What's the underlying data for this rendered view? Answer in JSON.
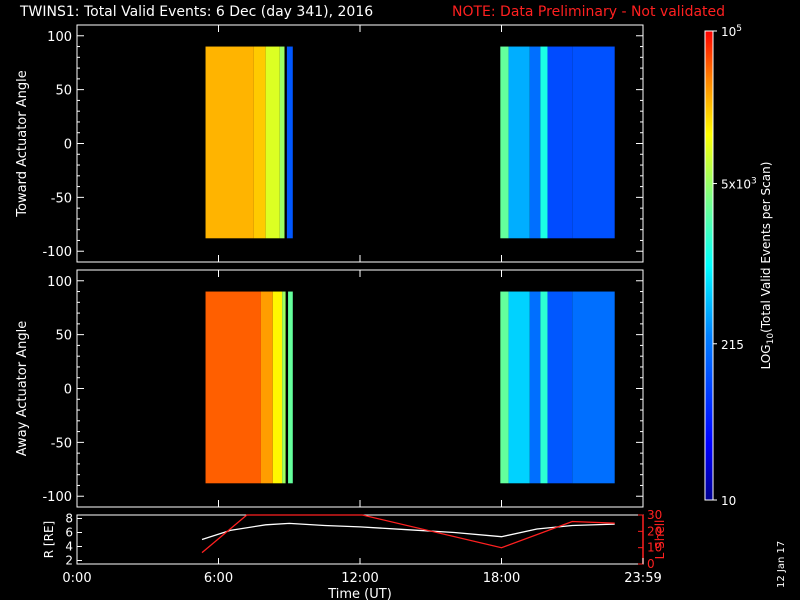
{
  "title": {
    "main": "TWINS1: Total Valid Events:  6 Dec (day 341), 2016",
    "note": "NOTE: Data Preliminary - Not validated"
  },
  "footnote": "12 Jan 17",
  "colors": {
    "background": "#000000",
    "axes": "#ffffff",
    "note": "#ff2020",
    "r_line": "#ffffff",
    "lshell_line": "#ff2020"
  },
  "chart_data": [
    {
      "type": "heatmap",
      "ylabel": "Toward Actuator Angle",
      "ylim": [
        -110,
        110
      ],
      "yticks": [
        100,
        50,
        0,
        -50,
        -100
      ],
      "xlim": [
        0,
        24
      ],
      "y_extent": [
        -88,
        90
      ],
      "blocks": [
        {
          "x": [
            5.45,
            9.2
          ],
          "columns": [
            [
              5.45,
              7.5,
              4.0
            ],
            [
              7.5,
              8.0,
              3.9
            ],
            [
              8.0,
              8.6,
              3.5
            ],
            [
              8.6,
              8.8,
              3.2
            ],
            [
              8.8,
              8.9,
              0.0
            ],
            [
              8.9,
              9.15,
              1.3
            ]
          ]
        },
        {
          "x": [
            17.95,
            22.8
          ],
          "columns": [
            [
              17.95,
              18.3,
              2.9
            ],
            [
              18.3,
              19.2,
              1.9
            ],
            [
              19.2,
              19.65,
              1.5
            ],
            [
              19.65,
              19.95,
              2.5
            ],
            [
              19.95,
              21.0,
              1.2
            ],
            [
              21.0,
              22.8,
              1.25
            ]
          ]
        }
      ]
    },
    {
      "type": "heatmap",
      "ylabel": "Away Actuator Angle",
      "ylim": [
        -110,
        110
      ],
      "yticks": [
        100,
        50,
        0,
        -50,
        -100
      ],
      "xlim": [
        0,
        24
      ],
      "y_extent": [
        -88,
        90
      ],
      "blocks": [
        {
          "x": [
            5.45,
            9.2
          ],
          "columns": [
            [
              5.45,
              7.8,
              4.35
            ],
            [
              7.8,
              8.3,
              4.1
            ],
            [
              8.3,
              8.7,
              3.7
            ],
            [
              8.7,
              8.85,
              3.2
            ],
            [
              8.85,
              8.95,
              0.0
            ],
            [
              8.95,
              9.15,
              2.9
            ]
          ]
        },
        {
          "x": [
            17.95,
            22.8
          ],
          "columns": [
            [
              17.95,
              18.3,
              2.9
            ],
            [
              18.3,
              19.2,
              2.1
            ],
            [
              19.2,
              19.65,
              1.5
            ],
            [
              19.65,
              19.95,
              2.6
            ],
            [
              19.95,
              21.0,
              1.3
            ],
            [
              21.0,
              22.8,
              1.5
            ]
          ]
        }
      ]
    },
    {
      "type": "line",
      "ylabel": "R [RE]",
      "y2label": "L Shell",
      "xlabel": "Time (UT)",
      "xlim": [
        0,
        24
      ],
      "xticks": [
        "0:00",
        "6:00",
        "12:00",
        "18:00",
        "23:59"
      ],
      "ylim": [
        1.5,
        8.5
      ],
      "yticks": [
        2,
        4,
        6,
        8
      ],
      "y2lim": [
        0,
        30
      ],
      "y2ticks": [
        0,
        10,
        20,
        30
      ],
      "series": [
        {
          "axis": "left",
          "x": [
            5.3,
            6.5,
            8.0,
            9.0,
            10.5,
            12.0,
            14.0,
            16.0,
            18.0,
            19.5,
            21.0,
            22.8
          ],
          "values": [
            5.0,
            6.3,
            7.1,
            7.3,
            7.0,
            6.8,
            6.4,
            6.0,
            5.4,
            6.5,
            7.0,
            7.2
          ]
        },
        {
          "axis": "right",
          "x": [
            5.3,
            7.2,
            7.3,
            12.0,
            12.1,
            18.0,
            21.0,
            22.8
          ],
          "values": [
            7,
            30,
            30,
            30,
            30,
            10,
            26,
            25
          ]
        }
      ]
    },
    {
      "type": "colorbar",
      "label": "LOG10(Total Valid Events per Scan)",
      "scale": "log",
      "range": [
        10,
        100000
      ],
      "tick_labels": [
        "10",
        "215",
        "5x10^3",
        "10^5"
      ],
      "tick_values": [
        10,
        215,
        5000,
        100000
      ]
    }
  ]
}
